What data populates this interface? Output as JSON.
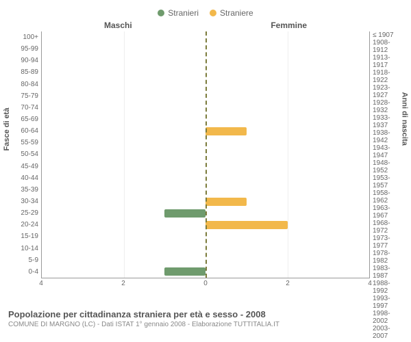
{
  "legend": {
    "male": {
      "label": "Stranieri",
      "color": "#6f9b6d"
    },
    "female": {
      "label": "Straniere",
      "color": "#f2b84b"
    }
  },
  "chart": {
    "type": "population-pyramid",
    "male_title": "Maschi",
    "female_title": "Femmine",
    "left_axis_label": "Fasce di età",
    "right_axis_label": "Anni di nascita",
    "x_max": 4,
    "x_ticks_left": [
      4,
      2,
      0
    ],
    "x_ticks_right": [
      0,
      2,
      4
    ],
    "background_color": "#ffffff",
    "grid_color": "#eeeeee",
    "axis_color": "#999999",
    "center_line_color": "#7a7a3a",
    "rows": [
      {
        "age": "100+",
        "birth": "≤ 1907",
        "m": 0,
        "f": 0
      },
      {
        "age": "95-99",
        "birth": "1908-1912",
        "m": 0,
        "f": 0
      },
      {
        "age": "90-94",
        "birth": "1913-1917",
        "m": 0,
        "f": 0
      },
      {
        "age": "85-89",
        "birth": "1918-1922",
        "m": 0,
        "f": 0
      },
      {
        "age": "80-84",
        "birth": "1923-1927",
        "m": 0,
        "f": 0
      },
      {
        "age": "75-79",
        "birth": "1928-1932",
        "m": 0,
        "f": 0
      },
      {
        "age": "70-74",
        "birth": "1933-1937",
        "m": 0,
        "f": 0
      },
      {
        "age": "65-69",
        "birth": "1938-1942",
        "m": 0,
        "f": 0
      },
      {
        "age": "60-64",
        "birth": "1943-1947",
        "m": 0,
        "f": 1
      },
      {
        "age": "55-59",
        "birth": "1948-1952",
        "m": 0,
        "f": 0
      },
      {
        "age": "50-54",
        "birth": "1953-1957",
        "m": 0,
        "f": 0
      },
      {
        "age": "45-49",
        "birth": "1958-1962",
        "m": 0,
        "f": 0
      },
      {
        "age": "40-44",
        "birth": "1963-1967",
        "m": 0,
        "f": 0
      },
      {
        "age": "35-39",
        "birth": "1968-1972",
        "m": 0,
        "f": 0
      },
      {
        "age": "30-34",
        "birth": "1973-1977",
        "m": 0,
        "f": 1
      },
      {
        "age": "25-29",
        "birth": "1978-1982",
        "m": 1,
        "f": 0
      },
      {
        "age": "20-24",
        "birth": "1983-1987",
        "m": 0,
        "f": 2
      },
      {
        "age": "15-19",
        "birth": "1988-1992",
        "m": 0,
        "f": 0
      },
      {
        "age": "10-14",
        "birth": "1993-1997",
        "m": 0,
        "f": 0
      },
      {
        "age": "5-9",
        "birth": "1998-2002",
        "m": 0,
        "f": 0
      },
      {
        "age": "0-4",
        "birth": "2003-2007",
        "m": 1,
        "f": 0
      }
    ]
  },
  "caption": {
    "title": "Popolazione per cittadinanza straniera per età e sesso - 2008",
    "subtitle": "COMUNE DI MARGNO (LC) - Dati ISTAT 1° gennaio 2008 - Elaborazione TUTTITALIA.IT"
  }
}
